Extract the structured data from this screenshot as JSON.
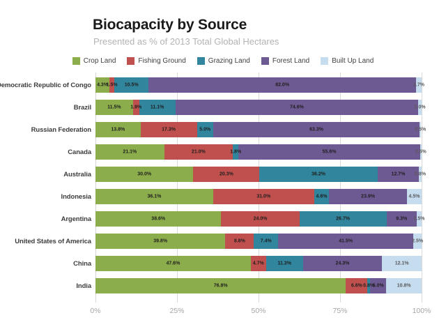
{
  "title": "Biocapacity by Source",
  "subtitle": "Presented as % of 2013 Total Global Hectares",
  "chart_data": {
    "type": "bar",
    "stacked": true,
    "orientation": "horizontal",
    "title": "Biocapacity by Source",
    "subtitle": "Presented as % of 2013 Total Global Hectares",
    "xlim": [
      0,
      100
    ],
    "xticks": [
      "0%",
      "25%",
      "50%",
      "75%",
      "100%"
    ],
    "grid": "vertical",
    "legend_position": "top-center",
    "categories": [
      "Democratic Republic of Congo",
      "Brazil",
      "Russian Federation",
      "Canada",
      "Australia",
      "Indonesia",
      "Argentina",
      "United States of America",
      "China",
      "India"
    ],
    "series": [
      {
        "name": "Crop Land",
        "color": "#8cad4b",
        "label_color": "#1f1f1f",
        "values": [
          4.3,
          11.5,
          13.8,
          21.1,
          30.0,
          36.1,
          38.6,
          39.8,
          47.6,
          76.8
        ]
      },
      {
        "name": "Fishing Ground",
        "color": "#c0504d",
        "label_color": "#1f1f1f",
        "values": [
          1.5,
          1.9,
          17.3,
          21.0,
          20.3,
          31.0,
          24.0,
          8.8,
          4.7,
          6.6
        ]
      },
      {
        "name": "Grazing Land",
        "color": "#31859c",
        "label_color": "#1f1f1f",
        "values": [
          10.5,
          11.1,
          5.0,
          1.8,
          36.2,
          4.6,
          26.7,
          7.4,
          11.3,
          0.8
        ]
      },
      {
        "name": "Forest Land",
        "color": "#6e5a92",
        "label_color": "#1f1f1f",
        "values": [
          82.0,
          74.6,
          63.3,
          55.6,
          12.7,
          23.9,
          9.3,
          41.5,
          24.3,
          5.0
        ]
      },
      {
        "name": "Built Up Land",
        "color": "#c6ddf0",
        "label_color": "#595959",
        "values": [
          1.7,
          1.0,
          0.5,
          0.5,
          0.8,
          4.5,
          1.5,
          2.5,
          12.1,
          10.8
        ]
      }
    ]
  }
}
